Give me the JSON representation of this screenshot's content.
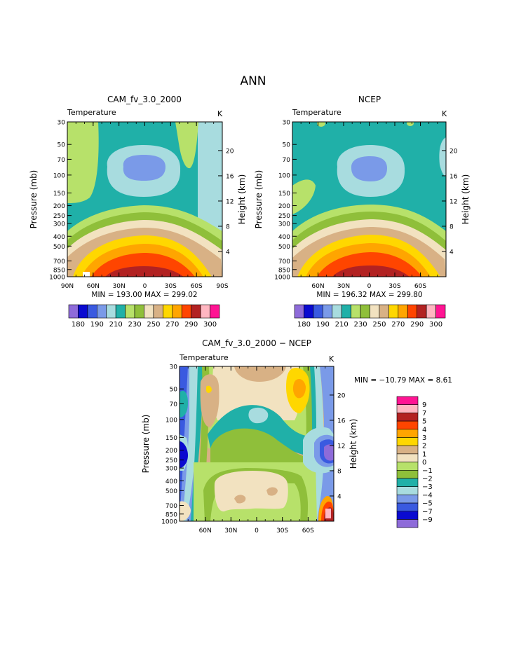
{
  "page_title": "ANN",
  "colors": {
    "p180": "#8e6bd9",
    "p185": "#0a0ad0",
    "p190": "#3a5ae0",
    "p200": "#7a9ae8",
    "p205": "#a8dcdf",
    "p210": "#20b0a8",
    "p220": "#b7e16a",
    "p230": "#8fbf3a",
    "p240": "#f2e2c0",
    "p250": "#d8b185",
    "p260": "#ffd700",
    "p270": "#ffa500",
    "p280": "#ff4500",
    "p290": "#b22222",
    "p295": "#ffb6c1",
    "p300": "#ff1493"
  },
  "chart_data": [
    {
      "type": "contour",
      "id": "cam",
      "title": "CAM_fv_3.0_2000",
      "variable": "Temperature",
      "units": "K",
      "ylabel": "Pressure (mb)",
      "ylabel_right": "Height (km)",
      "yticks": [
        "30",
        "50",
        "70",
        "100",
        "150",
        "200",
        "250",
        "300",
        "400",
        "500",
        "700",
        "850",
        "1000"
      ],
      "yticks_right": [
        "20",
        "16",
        "12",
        "8",
        "4"
      ],
      "xticks": [
        "90N",
        "60N",
        "30N",
        "0",
        "30S",
        "60S",
        "90S"
      ],
      "stats": "MIN = 193.00   MAX = 299.02",
      "colorbar": {
        "labels": [
          "180",
          "190",
          "210",
          "230",
          "250",
          "270",
          "290",
          "300"
        ]
      }
    },
    {
      "type": "contour",
      "id": "ncep",
      "title": "NCEP",
      "variable": "Temperature",
      "units": "K",
      "ylabel": "Pressure (mb)",
      "ylabel_right": "Height (km)",
      "yticks": [
        "30",
        "50",
        "70",
        "100",
        "150",
        "200",
        "250",
        "300",
        "400",
        "500",
        "700",
        "850",
        "1000"
      ],
      "yticks_right": [
        "20",
        "16",
        "12",
        "8",
        "4"
      ],
      "xticks": [
        "60N",
        "30N",
        "0",
        "30S",
        "60S"
      ],
      "stats": "MIN = 196.32   MAX = 299.80",
      "colorbar": {
        "labels": [
          "180",
          "190",
          "210",
          "230",
          "250",
          "270",
          "290",
          "300"
        ]
      }
    },
    {
      "type": "contour",
      "id": "diff",
      "title": "CAM_fv_3.0_2000 − NCEP",
      "variable": "Temperature",
      "units": "K",
      "ylabel": "Pressure (mb)",
      "ylabel_right": "Height (km)",
      "yticks": [
        "30",
        "50",
        "70",
        "100",
        "150",
        "200",
        "250",
        "300",
        "400",
        "500",
        "700",
        "850",
        "1000"
      ],
      "yticks_right": [
        "20",
        "16",
        "12",
        "8",
        "4"
      ],
      "xticks": [
        "60N",
        "30N",
        "0",
        "30S",
        "60S"
      ],
      "stats": "MIN = −10.79   MAX =    8.61",
      "colorbar": {
        "labels": [
          "9",
          "7",
          "5",
          "4",
          "3",
          "2",
          "1",
          "0",
          "−1",
          "−2",
          "−3",
          "−4",
          "−5",
          "−7",
          "−9"
        ],
        "colors": [
          "#ff1493",
          "#ffb6c1",
          "#b22222",
          "#ff4500",
          "#ffa500",
          "#ffd700",
          "#d8b185",
          "#f2e2c0",
          "#b7e16a",
          "#8fbf3a",
          "#20b0a8",
          "#a8dcdf",
          "#7a9ae8",
          "#3a5ae0",
          "#0a0ad0",
          "#8e6bd9"
        ]
      }
    }
  ]
}
